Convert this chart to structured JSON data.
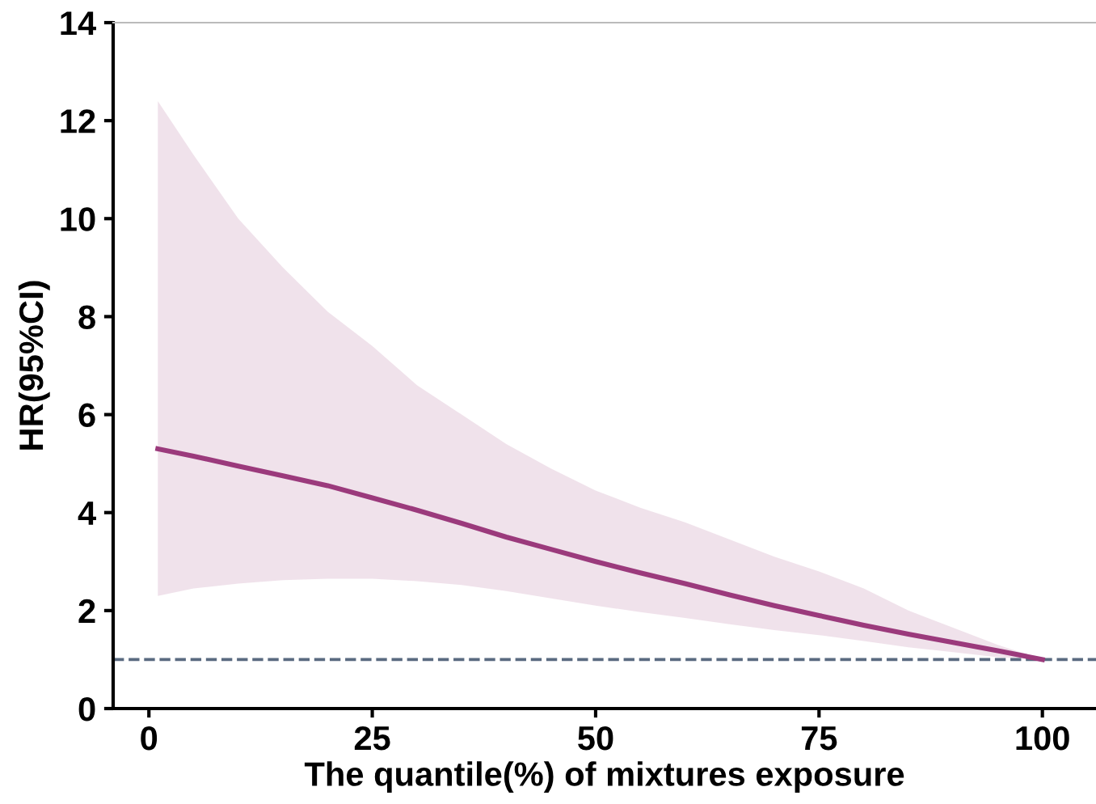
{
  "chart_data": {
    "type": "line",
    "xlabel": "The quantile(%) of mixtures exposure",
    "ylabel": "HR(95%CI)",
    "series": [
      {
        "color": "#9b3a7c",
        "x": [
          1,
          5,
          10,
          15,
          20,
          25,
          30,
          35,
          40,
          45,
          50,
          55,
          60,
          65,
          70,
          75,
          80,
          85,
          90,
          95,
          100
        ],
        "values": [
          5.3,
          5.15,
          4.95,
          4.75,
          4.55,
          4.3,
          4.05,
          3.78,
          3.5,
          3.25,
          3.0,
          2.77,
          2.55,
          2.32,
          2.1,
          1.9,
          1.7,
          1.52,
          1.35,
          1.18,
          1.0
        ],
        "lower": [
          2.3,
          2.45,
          2.55,
          2.62,
          2.65,
          2.65,
          2.6,
          2.52,
          2.4,
          2.25,
          2.1,
          1.97,
          1.85,
          1.72,
          1.6,
          1.5,
          1.38,
          1.25,
          1.15,
          1.05,
          1.0
        ],
        "upper": [
          12.4,
          11.3,
          10.0,
          9.0,
          8.1,
          7.4,
          6.6,
          6.0,
          5.4,
          4.9,
          4.45,
          4.1,
          3.8,
          3.45,
          3.1,
          2.8,
          2.45,
          2.0,
          1.65,
          1.3,
          1.0
        ]
      }
    ],
    "xlim": [
      -4,
      106
    ],
    "xticks": [
      0,
      25,
      50,
      75,
      100
    ],
    "ylim": [
      0,
      14
    ],
    "yticks": [
      0,
      2,
      4,
      6,
      8,
      10,
      12,
      14
    ],
    "ref_lines": [
      {
        "axis": "y",
        "value": 1,
        "color": "#5a6a80",
        "line_style": "dashed"
      }
    ],
    "grid": false,
    "legend": false,
    "line_style": "solid",
    "marker": "none"
  }
}
